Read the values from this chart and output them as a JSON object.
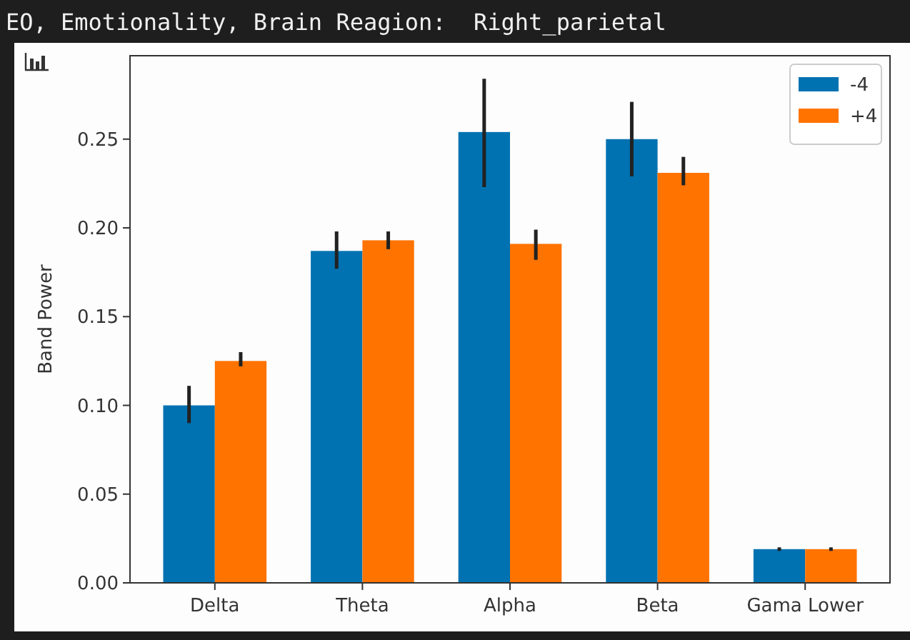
{
  "chart_data": {
    "type": "bar",
    "title": "EO, Emotionality, Brain Reagion:  Right_parietal",
    "ylabel": "Band Power",
    "categories": [
      "Delta",
      "Theta",
      "Alpha",
      "Beta",
      "Gama Lower"
    ],
    "series": [
      {
        "name": "-4",
        "color": "#0072b2",
        "values": [
          0.1,
          0.187,
          0.254,
          0.25,
          0.019
        ],
        "errors": [
          [
            0.09,
            0.111
          ],
          [
            0.177,
            0.198
          ],
          [
            0.223,
            0.284
          ],
          [
            0.229,
            0.271
          ],
          [
            0.018,
            0.02
          ]
        ]
      },
      {
        "name": "+4",
        "color": "#ff7300",
        "values": [
          0.125,
          0.193,
          0.191,
          0.231,
          0.019
        ],
        "errors": [
          [
            0.122,
            0.13
          ],
          [
            0.188,
            0.198
          ],
          [
            0.182,
            0.199
          ],
          [
            0.224,
            0.24
          ],
          [
            0.018,
            0.02
          ]
        ]
      }
    ],
    "ylim": [
      0,
      0.297
    ],
    "yticks": [
      {
        "value": 0,
        "label": "0.00"
      },
      {
        "value": 0.05,
        "label": "0.05"
      },
      {
        "value": 0.1,
        "label": "0.10"
      },
      {
        "value": 0.15,
        "label": "0.15"
      },
      {
        "value": 0.2,
        "label": "0.20"
      },
      {
        "value": 0.25,
        "label": "0.25"
      }
    ],
    "grid": false,
    "legend": "top right"
  }
}
